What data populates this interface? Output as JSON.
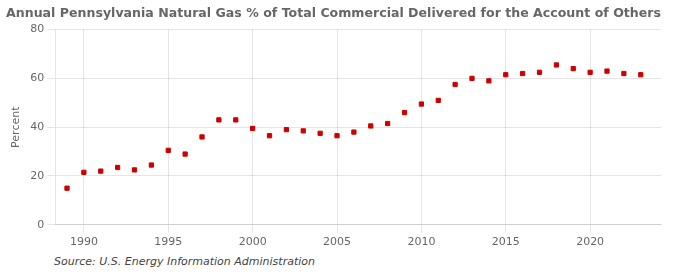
{
  "chart_data": {
    "type": "scatter",
    "title": "Annual Pennsylvania Natural Gas % of Total Commercial Delivered for the Account of Others",
    "ylabel": "Percent",
    "annotations": [
      "Source: U.S. Energy Information Administration"
    ],
    "x": [
      1989,
      1990,
      1991,
      1992,
      1993,
      1994,
      1995,
      1996,
      1997,
      1998,
      1999,
      2000,
      2001,
      2002,
      2003,
      2004,
      2005,
      2006,
      2007,
      2008,
      2009,
      2010,
      2011,
      2012,
      2013,
      2014,
      2015,
      2016,
      2017,
      2018,
      2019,
      2020,
      2021,
      2022,
      2023
    ],
    "values": [
      15.0,
      21.5,
      22.0,
      23.5,
      22.5,
      24.5,
      30.5,
      29.0,
      36.0,
      43.0,
      43.0,
      39.5,
      36.5,
      39.0,
      38.5,
      37.5,
      36.5,
      38.0,
      40.5,
      41.5,
      46.0,
      49.5,
      51.0,
      57.5,
      60.0,
      59.0,
      61.5,
      62.0,
      62.5,
      65.5,
      64.0,
      62.5,
      63.0,
      62.0,
      61.5
    ],
    "color": "#cc0000",
    "marker": "square",
    "xlim": [
      1988.3,
      2024.2
    ],
    "xticks": [
      1990,
      1995,
      2000,
      2005,
      2010,
      2015,
      2020
    ],
    "ylim": [
      0,
      80
    ],
    "yticks": [
      0,
      20,
      40,
      60,
      80
    ],
    "grid": true
  }
}
